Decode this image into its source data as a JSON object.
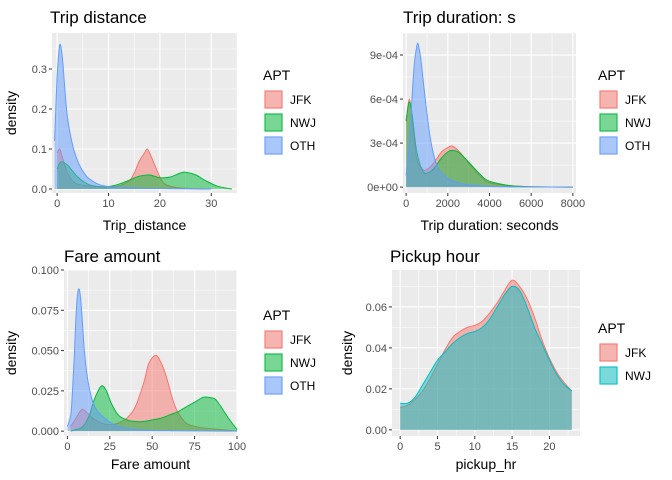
{
  "colors": {
    "JFK": "#F8766D",
    "NWJ": "#00BA38",
    "OTH": "#619CFF",
    "NWJ_2": "#00BFC4",
    "panel": "#EBEBEB"
  },
  "chart_data": [
    {
      "type": "area",
      "title": "Trip distance",
      "xlabel": "Trip_distance",
      "ylabel": "density",
      "xlim": [
        -1,
        35
      ],
      "ylim": [
        -0.01,
        0.39
      ],
      "x_ticks": [
        0,
        10,
        20,
        30
      ],
      "x_tick_labels": [
        "0",
        "10",
        "20",
        "30"
      ],
      "y_ticks": [
        0,
        0.1,
        0.2,
        0.3
      ],
      "y_tick_labels": [
        "0.0",
        "0.1",
        "0.2",
        "0.3"
      ],
      "legend_title": "APT",
      "legend_position": "right",
      "series": [
        {
          "name": "JFK",
          "color": "#F8766D",
          "x": [
            0,
            0.5,
            1,
            2,
            3,
            4,
            6,
            8,
            10,
            12,
            14,
            15,
            16,
            17,
            17.5,
            18,
            19,
            20,
            21,
            23,
            26,
            30
          ],
          "values": [
            0.09,
            0.1,
            0.08,
            0.04,
            0.02,
            0.012,
            0.008,
            0.006,
            0.006,
            0.008,
            0.02,
            0.04,
            0.07,
            0.09,
            0.1,
            0.09,
            0.06,
            0.03,
            0.012,
            0.004,
            0.001,
            0
          ]
        },
        {
          "name": "NWJ",
          "color": "#00BA38",
          "x": [
            0,
            0.5,
            1,
            2,
            3,
            4,
            6,
            8,
            10,
            12,
            14,
            16,
            18,
            20,
            22,
            24,
            25,
            27,
            29,
            31,
            33,
            34
          ],
          "values": [
            0.05,
            0.065,
            0.068,
            0.06,
            0.045,
            0.03,
            0.012,
            0.006,
            0.006,
            0.012,
            0.022,
            0.032,
            0.035,
            0.028,
            0.03,
            0.04,
            0.042,
            0.035,
            0.02,
            0.008,
            0.002,
            0
          ]
        },
        {
          "name": "OTH",
          "color": "#619CFF",
          "x": [
            -0.5,
            0,
            0.5,
            1,
            1.5,
            2,
            3,
            4,
            5,
            6,
            8,
            10,
            13,
            17,
            22,
            26,
            30
          ],
          "values": [
            0.12,
            0.28,
            0.36,
            0.33,
            0.25,
            0.18,
            0.11,
            0.07,
            0.045,
            0.028,
            0.012,
            0.006,
            0.004,
            0.002,
            0.001,
            0.0005,
            0
          ]
        }
      ]
    },
    {
      "type": "area",
      "title": "Trip duration: s",
      "xlabel": "Trip duration: seconds",
      "ylabel": "",
      "xlim": [
        -150,
        8150
      ],
      "ylim": [
        -4e-05,
        0.00105
      ],
      "x_ticks": [
        0,
        2000,
        4000,
        6000,
        8000
      ],
      "x_tick_labels": [
        "0",
        "2000",
        "4000",
        "6000",
        "8000"
      ],
      "y_ticks": [
        0,
        0.0003,
        0.0006,
        0.0009
      ],
      "y_tick_labels": [
        "0e+00",
        "3e-04",
        "6e-04",
        "9e-04"
      ],
      "legend_title": "APT",
      "legend_position": "right",
      "series": [
        {
          "name": "JFK",
          "color": "#F8766D",
          "x": [
            0,
            150,
            300,
            500,
            800,
            1100,
            1400,
            1700,
            2000,
            2200,
            2500,
            2800,
            3200,
            3600,
            4000,
            5000,
            6000,
            8000
          ],
          "values": [
            0.00045,
            0.0006,
            0.00045,
            0.0002,
            0.00012,
            0.00013,
            0.00018,
            0.00024,
            0.00027,
            0.00028,
            0.00025,
            0.0002,
            0.00013,
            7e-05,
            3e-05,
            1e-05,
            3e-06,
            0
          ]
        },
        {
          "name": "NWJ",
          "color": "#00BA38",
          "x": [
            0,
            150,
            300,
            500,
            800,
            1100,
            1400,
            1700,
            2000,
            2200,
            2500,
            2800,
            3200,
            3600,
            4000,
            5000,
            6000,
            8000
          ],
          "values": [
            0.00045,
            0.00058,
            0.00048,
            0.00025,
            0.00011,
            0.0001,
            0.00014,
            0.0002,
            0.00024,
            0.00025,
            0.00024,
            0.0002,
            0.00014,
            8e-05,
            4e-05,
            1e-05,
            3e-06,
            0
          ]
        },
        {
          "name": "OTH",
          "color": "#619CFF",
          "x": [
            0,
            100,
            200,
            300,
            400,
            500,
            550,
            600,
            700,
            800,
            1000,
            1200,
            1500,
            2000,
            2500,
            3000,
            4000,
            5000,
            6000,
            8000
          ],
          "values": [
            8e-05,
            0.0002,
            0.0004,
            0.00065,
            0.00085,
            0.00095,
            0.00098,
            0.00096,
            0.00088,
            0.00075,
            0.0005,
            0.0003,
            0.00014,
            6e-05,
            3e-05,
            1.5e-05,
            5e-06,
            2e-06,
            1e-06,
            0
          ]
        }
      ]
    },
    {
      "type": "area",
      "title": "Fare amount",
      "xlabel": "Fare amount",
      "ylabel": "density",
      "xlim": [
        -2,
        100
      ],
      "ylim": [
        -0.003,
        0.1
      ],
      "x_ticks": [
        0,
        25,
        50,
        75,
        100
      ],
      "x_tick_labels": [
        "0",
        "25",
        "50",
        "75",
        "100"
      ],
      "y_ticks": [
        0,
        0.025,
        0.05,
        0.075,
        0.1
      ],
      "y_tick_labels": [
        "0.000",
        "0.025",
        "0.050",
        "0.075",
        "0.100"
      ],
      "legend_title": "APT",
      "legend_position": "right",
      "series": [
        {
          "name": "JFK",
          "color": "#F8766D",
          "x": [
            2,
            5,
            8,
            10,
            15,
            20,
            25,
            30,
            35,
            40,
            45,
            48,
            52,
            55,
            58,
            62,
            65,
            70,
            75,
            80,
            90,
            100
          ],
          "values": [
            0.003,
            0.008,
            0.013,
            0.013,
            0.008,
            0.005,
            0.004,
            0.005,
            0.008,
            0.015,
            0.03,
            0.042,
            0.047,
            0.043,
            0.035,
            0.02,
            0.012,
            0.005,
            0.003,
            0.002,
            0.001,
            0
          ]
        },
        {
          "name": "NWJ",
          "color": "#00BA38",
          "x": [
            2,
            5,
            8,
            10,
            13,
            16,
            20,
            23,
            26,
            30,
            35,
            40,
            45,
            50,
            55,
            60,
            65,
            70,
            75,
            80,
            83,
            87,
            90,
            95,
            100
          ],
          "values": [
            0,
            0.001,
            0.002,
            0.004,
            0.01,
            0.02,
            0.028,
            0.025,
            0.017,
            0.01,
            0.007,
            0.006,
            0.006,
            0.007,
            0.008,
            0.01,
            0.012,
            0.015,
            0.018,
            0.021,
            0.021,
            0.02,
            0.016,
            0.008,
            0.001
          ]
        },
        {
          "name": "OTH",
          "color": "#619CFF",
          "x": [
            0,
            2,
            3,
            4,
            5,
            6,
            7,
            8,
            9,
            10,
            12,
            15,
            18,
            22,
            26,
            30,
            40,
            50,
            60,
            70,
            80,
            100
          ],
          "values": [
            0.003,
            0.01,
            0.025,
            0.045,
            0.07,
            0.085,
            0.088,
            0.08,
            0.065,
            0.05,
            0.032,
            0.018,
            0.012,
            0.008,
            0.005,
            0.003,
            0.001,
            0.0005,
            0.0003,
            0.0002,
            0.0001,
            0
          ]
        }
      ]
    },
    {
      "type": "area",
      "title": "Pickup hour",
      "xlabel": "pickup_hr",
      "ylabel": "density",
      "xlim": [
        -1.1,
        24.1
      ],
      "ylim": [
        -0.003,
        0.078
      ],
      "x_ticks": [
        0,
        5,
        10,
        15,
        20
      ],
      "x_tick_labels": [
        "0",
        "5",
        "10",
        "15",
        "20"
      ],
      "y_ticks": [
        0,
        0.02,
        0.04,
        0.06
      ],
      "y_tick_labels": [
        "0.00",
        "0.02",
        "0.04",
        "0.06"
      ],
      "legend_title": "APT",
      "legend_position": "right",
      "series": [
        {
          "name": "JFK",
          "color": "#F8766D",
          "x": [
            0,
            1,
            2,
            3,
            4,
            5,
            6,
            7,
            8,
            9,
            10,
            11,
            12,
            13,
            14,
            15,
            16,
            17,
            18,
            19,
            20,
            21,
            22,
            23
          ],
          "values": [
            0.011,
            0.012,
            0.015,
            0.019,
            0.025,
            0.032,
            0.039,
            0.045,
            0.048,
            0.05,
            0.051,
            0.053,
            0.057,
            0.062,
            0.068,
            0.073,
            0.07,
            0.064,
            0.055,
            0.044,
            0.035,
            0.028,
            0.023,
            0.019
          ]
        },
        {
          "name": "NWJ",
          "color": "#00BFC4",
          "x": [
            0,
            1,
            2,
            3,
            4,
            5,
            6,
            7,
            8,
            9,
            10,
            11,
            12,
            13,
            14,
            15,
            16,
            17,
            18,
            19,
            20,
            21,
            22,
            23
          ],
          "values": [
            0.013,
            0.013,
            0.016,
            0.022,
            0.028,
            0.034,
            0.038,
            0.042,
            0.045,
            0.047,
            0.048,
            0.05,
            0.054,
            0.06,
            0.066,
            0.07,
            0.068,
            0.06,
            0.05,
            0.042,
            0.034,
            0.027,
            0.022,
            0.019
          ]
        }
      ]
    }
  ]
}
